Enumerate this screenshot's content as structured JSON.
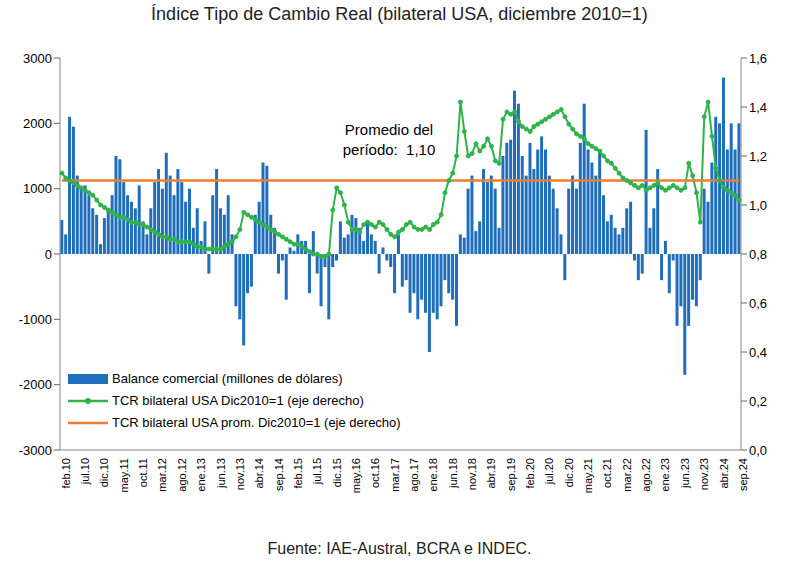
{
  "chart_data": {
    "type": "bar",
    "title": "Índice Tipo de Cambio Real (bilateral USA, diciembre 2010=1)",
    "source": "Fuente: IAE-Austral, BCRA e INDEC.",
    "annotations": [
      "Promedio del período:  1,10"
    ],
    "legend": "lower left",
    "grid": false,
    "categories": [
      "feb.10",
      null,
      null,
      null,
      null,
      "jul.10",
      null,
      null,
      null,
      null,
      "dic.10",
      null,
      null,
      null,
      null,
      "may.11",
      null,
      null,
      null,
      null,
      "oct.11",
      null,
      null,
      null,
      null,
      "mar.12",
      null,
      null,
      null,
      null,
      "ago.12",
      null,
      null,
      null,
      null,
      "ene.13",
      null,
      null,
      null,
      null,
      "jun.13",
      null,
      null,
      null,
      null,
      "nov.13",
      null,
      null,
      null,
      null,
      "abr.14",
      null,
      null,
      null,
      null,
      "sep.14",
      null,
      null,
      null,
      null,
      "feb.15",
      null,
      null,
      null,
      null,
      "jul.15",
      null,
      null,
      null,
      null,
      "dic.15",
      null,
      null,
      null,
      null,
      "may.16",
      null,
      null,
      null,
      null,
      "oct.16",
      null,
      null,
      null,
      null,
      "mar.17",
      null,
      null,
      null,
      null,
      "ago.17",
      null,
      null,
      null,
      null,
      "ene.18",
      null,
      null,
      null,
      null,
      "jun.18",
      null,
      null,
      null,
      null,
      "nov.18",
      null,
      null,
      null,
      null,
      "abr.19",
      null,
      null,
      null,
      null,
      "sep.19",
      null,
      null,
      null,
      null,
      "feb.20",
      null,
      null,
      null,
      null,
      "jul.20",
      null,
      null,
      null,
      null,
      "dic.20",
      null,
      null,
      null,
      null,
      "may.21",
      null,
      null,
      null,
      null,
      "oct.21",
      null,
      null,
      null,
      null,
      "mar.22",
      null,
      null,
      null,
      null,
      "ago.22",
      null,
      null,
      null,
      null,
      "ene.23",
      null,
      null,
      null,
      null,
      "jun.23",
      null,
      null,
      null,
      null,
      "nov.23",
      null,
      null,
      null,
      null,
      "abr.24",
      null,
      null,
      null,
      null,
      "sep.24"
    ],
    "ylim": [
      -3000,
      3000
    ],
    "yticks": [
      -3000,
      -2000,
      -1000,
      0,
      1000,
      2000,
      3000
    ],
    "y2lim": [
      0,
      1.6
    ],
    "y2ticks": [
      {
        "value": 0,
        "label": "0,0"
      },
      {
        "value": 0.2,
        "label": "0,2"
      },
      {
        "value": 0.4,
        "label": "0,4"
      },
      {
        "value": 0.6,
        "label": "0,6"
      },
      {
        "value": 0.8,
        "label": "0,8"
      },
      {
        "value": 1.0,
        "label": "1,0"
      },
      {
        "value": 1.2,
        "label": "1,2"
      },
      {
        "value": 1.4,
        "label": "1,4"
      },
      {
        "value": 1.6,
        "label": "1,6"
      }
    ],
    "series": [
      {
        "name": "Balance comercial (millones de dólares)",
        "type": "bar",
        "color": "#1f6ebc",
        "values": [
          520,
          300,
          2100,
          1950,
          1200,
          1000,
          1050,
          900,
          700,
          600,
          150,
          550,
          700,
          900,
          1500,
          1450,
          1100,
          900,
          800,
          700,
          1050,
          500,
          300,
          700,
          1100,
          1300,
          1000,
          1550,
          1200,
          900,
          1300,
          1100,
          800,
          1000,
          400,
          700,
          200,
          500,
          -300,
          900,
          1300,
          700,
          600,
          900,
          300,
          -800,
          -1000,
          -1400,
          -600,
          -500,
          600,
          800,
          1400,
          1350,
          600,
          400,
          -300,
          -100,
          -700,
          100,
          50,
          300,
          200,
          200,
          -600,
          350,
          -300,
          -800,
          -200,
          -1000,
          -200,
          -100,
          500,
          250,
          300,
          600,
          550,
          400,
          200,
          500,
          300,
          200,
          -300,
          100,
          -100,
          -200,
          -600,
          300,
          -500,
          -400,
          -900,
          -600,
          -1000,
          -700,
          -900,
          -1500,
          -900,
          -1000,
          -800,
          -400,
          -600,
          -700,
          -1100,
          300,
          250,
          1000,
          1200,
          350,
          500,
          1300,
          1100,
          1200,
          1000,
          400,
          1500,
          1700,
          1750,
          2500,
          2300,
          1500,
          1200,
          1700,
          1300,
          1600,
          1800,
          1600,
          1200,
          1000,
          700,
          300,
          -400,
          1000,
          1200,
          1000,
          1700,
          2300,
          1600,
          1400,
          1200,
          1600,
          900,
          500,
          600,
          400,
          300,
          400,
          700,
          800,
          -100,
          -400,
          -300,
          1900,
          400,
          700,
          1300,
          -400,
          200,
          -600,
          -100,
          -1100,
          -800,
          -1850,
          -1100,
          -700,
          -800,
          -400,
          1000,
          800,
          1400,
          2100,
          2000,
          2700,
          1600,
          2000,
          1600,
          2000
        ]
      },
      {
        "name": "TCR bilateral USA Dic2010=1 (eje derecho)",
        "type": "line",
        "axis": "y2",
        "color": "#2fb34a",
        "marker": "circle",
        "line_style": "solid",
        "values": [
          1.13,
          1.11,
          1.1,
          1.09,
          1.08,
          1.07,
          1.06,
          1.05,
          1.04,
          1.02,
          1.0,
          0.99,
          0.98,
          0.97,
          0.96,
          0.95,
          0.95,
          0.94,
          0.93,
          0.93,
          0.92,
          0.92,
          0.91,
          0.9,
          0.89,
          0.88,
          0.87,
          0.87,
          0.86,
          0.86,
          0.85,
          0.85,
          0.85,
          0.85,
          0.84,
          0.83,
          0.83,
          0.82,
          0.82,
          0.82,
          0.82,
          0.82,
          0.83,
          0.84,
          0.85,
          0.87,
          0.9,
          0.97,
          0.96,
          0.95,
          0.94,
          0.93,
          0.92,
          0.91,
          0.9,
          0.89,
          0.88,
          0.87,
          0.86,
          0.85,
          0.84,
          0.84,
          0.83,
          0.82,
          0.81,
          0.8,
          0.8,
          0.79,
          0.79,
          0.8,
          0.98,
          1.07,
          1.05,
          1.0,
          0.93,
          0.9,
          0.9,
          0.89,
          0.92,
          0.93,
          0.92,
          0.91,
          0.93,
          0.92,
          0.9,
          0.88,
          0.87,
          0.89,
          0.9,
          0.92,
          0.93,
          0.91,
          0.9,
          0.9,
          0.91,
          0.9,
          0.92,
          0.93,
          0.96,
          1.05,
          1.1,
          1.13,
          1.2,
          1.42,
          1.3,
          1.2,
          1.21,
          1.25,
          1.22,
          1.24,
          1.27,
          1.24,
          1.18,
          1.17,
          1.35,
          1.38,
          1.37,
          1.38,
          1.34,
          1.32,
          1.31,
          1.3,
          1.32,
          1.33,
          1.34,
          1.35,
          1.36,
          1.37,
          1.38,
          1.39,
          1.36,
          1.33,
          1.31,
          1.29,
          1.28,
          1.27,
          1.25,
          1.24,
          1.23,
          1.22,
          1.2,
          1.18,
          1.17,
          1.15,
          1.13,
          1.11,
          1.1,
          1.09,
          1.08,
          1.07,
          1.08,
          1.06,
          1.07,
          1.08,
          1.09,
          1.07,
          1.06,
          1.07,
          1.08,
          1.07,
          1.06,
          1.07,
          1.17,
          1.12,
          1.05,
          0.93,
          1.36,
          1.42,
          1.28,
          1.15,
          1.1,
          1.07,
          1.06,
          1.05,
          1.04,
          1.02
        ]
      },
      {
        "name": "TCR bilateral USA prom. Dic2010=1 (eje derecho)",
        "type": "line",
        "axis": "y2",
        "color": "#ed7d31",
        "marker": "none",
        "line_style": "solid",
        "values": [
          1.1,
          1.1,
          1.1,
          1.1,
          1.1,
          1.1,
          1.1,
          1.1,
          1.1,
          1.1,
          1.1,
          1.1,
          1.1,
          1.1,
          1.1,
          1.1,
          1.1,
          1.1,
          1.1,
          1.1,
          1.1,
          1.1,
          1.1,
          1.1,
          1.1,
          1.1,
          1.1,
          1.1,
          1.1,
          1.1,
          1.1,
          1.1,
          1.1,
          1.1,
          1.1,
          1.1,
          1.1,
          1.1,
          1.1,
          1.1,
          1.1,
          1.1,
          1.1,
          1.1,
          1.1,
          1.1,
          1.1,
          1.1,
          1.1,
          1.1,
          1.1,
          1.1,
          1.1,
          1.1,
          1.1,
          1.1,
          1.1,
          1.1,
          1.1,
          1.1,
          1.1,
          1.1,
          1.1,
          1.1,
          1.1,
          1.1,
          1.1,
          1.1,
          1.1,
          1.1,
          1.1,
          1.1,
          1.1,
          1.1,
          1.1,
          1.1,
          1.1,
          1.1,
          1.1,
          1.1,
          1.1,
          1.1,
          1.1,
          1.1,
          1.1,
          1.1,
          1.1,
          1.1,
          1.1,
          1.1,
          1.1,
          1.1,
          1.1,
          1.1,
          1.1,
          1.1,
          1.1,
          1.1,
          1.1,
          1.1,
          1.1,
          1.1,
          1.1,
          1.1,
          1.1,
          1.1,
          1.1,
          1.1,
          1.1,
          1.1,
          1.1,
          1.1,
          1.1,
          1.1,
          1.1,
          1.1,
          1.1,
          1.1,
          1.1,
          1.1,
          1.1,
          1.1,
          1.1,
          1.1,
          1.1,
          1.1,
          1.1,
          1.1,
          1.1,
          1.1,
          1.1,
          1.1,
          1.1,
          1.1,
          1.1,
          1.1,
          1.1,
          1.1,
          1.1,
          1.1,
          1.1,
          1.1,
          1.1,
          1.1,
          1.1,
          1.1,
          1.1,
          1.1,
          1.1,
          1.1,
          1.1,
          1.1,
          1.1,
          1.1,
          1.1,
          1.1,
          1.1,
          1.1,
          1.1,
          1.1,
          1.1,
          1.1,
          1.1,
          1.1,
          1.1,
          1.1,
          1.1,
          1.1,
          1.1,
          1.1,
          1.1,
          1.1,
          1.1,
          1.1,
          1.1,
          1.1
        ]
      }
    ]
  }
}
